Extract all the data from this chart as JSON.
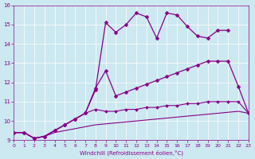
{
  "xlabel": "Windchill (Refroidissement éolien,°C)",
  "xlim": [
    0,
    23
  ],
  "ylim": [
    9,
    16
  ],
  "xticks": [
    0,
    1,
    2,
    3,
    4,
    5,
    6,
    7,
    8,
    9,
    10,
    11,
    12,
    13,
    14,
    15,
    16,
    17,
    18,
    19,
    20,
    21,
    22,
    23
  ],
  "yticks": [
    9,
    10,
    11,
    12,
    13,
    14,
    15,
    16
  ],
  "bg_color": "#cce8f0",
  "line_color": "#880088",
  "series": [
    {
      "x": [
        0,
        1,
        2,
        3,
        4,
        5,
        6,
        7,
        8,
        9,
        10,
        11,
        12,
        13,
        14,
        15,
        16,
        17,
        18,
        19,
        20,
        21
      ],
      "y": [
        9.4,
        9.4,
        9.1,
        9.2,
        9.5,
        9.8,
        10.1,
        10.4,
        11.6,
        15.1,
        14.6,
        15.0,
        15.6,
        15.4,
        14.3,
        15.6,
        15.5,
        14.9,
        14.4,
        14.3,
        14.7,
        14.7
      ],
      "marker": "D",
      "markersize": 2.5,
      "linestyle": "-",
      "linewidth": 0.9
    },
    {
      "x": [
        0,
        1,
        2,
        3,
        4,
        5,
        6,
        7,
        8,
        9,
        10,
        11,
        12,
        13,
        14,
        15,
        16,
        17,
        18,
        19,
        20,
        21,
        22,
        23
      ],
      "y": [
        9.4,
        9.4,
        9.1,
        9.2,
        9.5,
        9.8,
        10.1,
        10.4,
        11.7,
        12.6,
        11.3,
        11.5,
        11.7,
        11.9,
        12.1,
        12.3,
        12.5,
        12.7,
        12.9,
        13.1,
        13.1,
        13.1,
        11.8,
        10.4
      ],
      "marker": "D",
      "markersize": 2.5,
      "linestyle": "-",
      "linewidth": 0.9
    },
    {
      "x": [
        0,
        1,
        2,
        3,
        4,
        5,
        6,
        7,
        8,
        9,
        10,
        11,
        12,
        13,
        14,
        15,
        16,
        17,
        18,
        19,
        20,
        21,
        22,
        23
      ],
      "y": [
        9.4,
        9.4,
        9.1,
        9.2,
        9.5,
        9.8,
        10.1,
        10.4,
        10.6,
        10.5,
        10.5,
        10.6,
        10.6,
        10.7,
        10.7,
        10.8,
        10.8,
        10.9,
        10.9,
        11.0,
        11.0,
        11.0,
        11.0,
        10.4
      ],
      "marker": "D",
      "markersize": 2.0,
      "linestyle": "-",
      "linewidth": 0.8
    },
    {
      "x": [
        0,
        1,
        2,
        3,
        4,
        5,
        6,
        7,
        8,
        9,
        10,
        11,
        12,
        13,
        14,
        15,
        16,
        17,
        18,
        19,
        20,
        21,
        22,
        23
      ],
      "y": [
        9.4,
        9.4,
        9.1,
        9.2,
        9.4,
        9.5,
        9.6,
        9.7,
        9.8,
        9.85,
        9.9,
        9.95,
        10.0,
        10.05,
        10.1,
        10.15,
        10.2,
        10.25,
        10.3,
        10.35,
        10.4,
        10.45,
        10.5,
        10.4
      ],
      "marker": null,
      "markersize": 0,
      "linestyle": "-",
      "linewidth": 0.8
    }
  ]
}
